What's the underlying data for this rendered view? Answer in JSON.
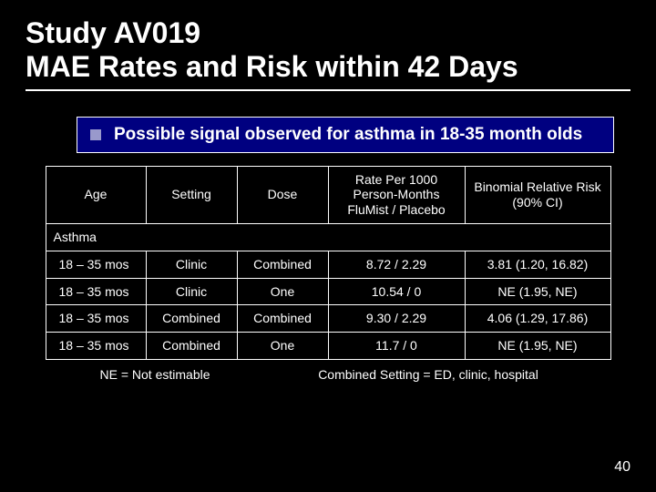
{
  "background_color": "#000000",
  "text_color": "#ffffff",
  "bullet_box_bg": "#000080",
  "bullet_square_color": "#9999cc",
  "title_line1": "Study AV019",
  "title_line2": "MAE Rates and Risk within 42 Days",
  "bullet_text": "Possible signal observed for asthma in 18-35 month olds",
  "table": {
    "columns": [
      "Age",
      "Setting",
      "Dose",
      "Rate Per 1000 Person-Months FluMist / Placebo",
      "Binomial Relative Risk (90% CI)"
    ],
    "section_label": "Asthma",
    "rows": [
      [
        "18 – 35 mos",
        "Clinic",
        "Combined",
        "8.72 / 2.29",
        "3.81 (1.20, 16.82)"
      ],
      [
        "18 – 35 mos",
        "Clinic",
        "One",
        "10.54 / 0",
        "NE (1.95, NE)"
      ],
      [
        "18 – 35 mos",
        "Combined",
        "Combined",
        "9.30 / 2.29",
        "4.06 (1.29, 17.86)"
      ],
      [
        "18 – 35 mos",
        "Combined",
        "One",
        "11.7 / 0",
        "NE (1.95, NE)"
      ]
    ]
  },
  "footnote_left": "NE = Not estimable",
  "footnote_right": "Combined Setting = ED, clinic, hospital",
  "page_number": "40"
}
